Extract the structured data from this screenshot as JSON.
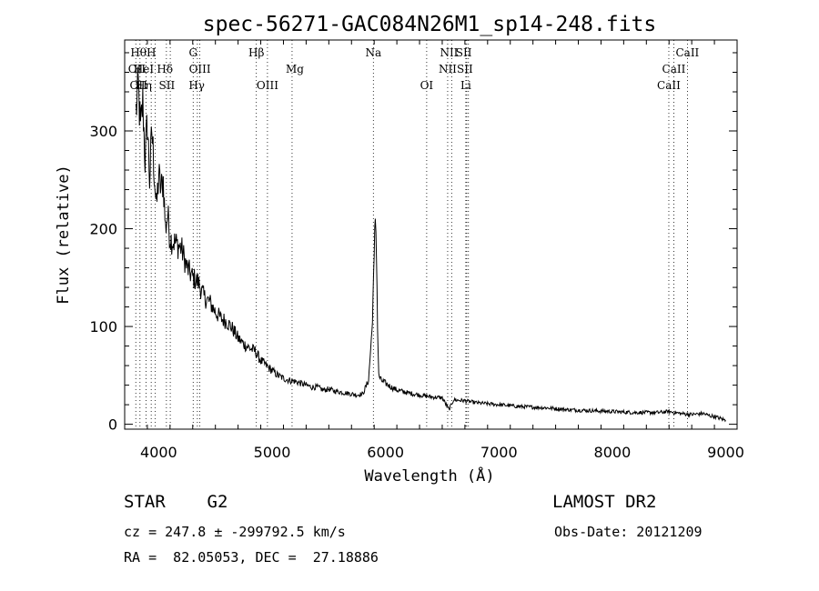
{
  "chart_data": {
    "type": "line",
    "title": "spec-56271-GAC084N26M1_sp14-248.fits",
    "xlabel": "Wavelength (Å)",
    "ylabel": "Flux (relative)",
    "xlim": [
      3700,
      9100
    ],
    "ylim": [
      -5,
      393
    ],
    "xticks": [
      4000,
      5000,
      6000,
      7000,
      8000,
      9000
    ],
    "xtick_labels": [
      "4000",
      "5000",
      "6000",
      "7000",
      "8000",
      "9000"
    ],
    "yticks": [
      0,
      100,
      200,
      300
    ],
    "ytick_labels": [
      "0",
      "100",
      "200",
      "300"
    ],
    "grid": false,
    "line_color": "#000000",
    "series": [
      {
        "x": [
          3800,
          3820,
          3840,
          3860,
          3880,
          3900,
          3920,
          3940,
          3960,
          3980,
          4000,
          4020,
          4040,
          4060,
          4080,
          4100,
          4150,
          4200,
          4250,
          4300,
          4350,
          4400,
          4450,
          4500,
          4550,
          4600,
          4650,
          4700,
          4750,
          4800,
          4850,
          4900,
          4950,
          5000,
          5050,
          5100,
          5150,
          5200,
          5250,
          5300,
          5350,
          5400,
          5450,
          5500,
          5550,
          5600,
          5650,
          5700,
          5750,
          5800,
          5850,
          5880,
          5900,
          5910,
          5920,
          5930,
          5940,
          5960,
          6000,
          6050,
          6100,
          6200,
          6300,
          6400,
          6500,
          6560,
          6600,
          6700,
          6800,
          6900,
          7000,
          7200,
          7400,
          7600,
          7800,
          8000,
          8200,
          8400,
          8500,
          8600,
          8700,
          8800,
          8850,
          8900,
          8950,
          9000
        ],
        "y": [
          320,
          345,
          300,
          330,
          270,
          310,
          250,
          300,
          260,
          220,
          255,
          240,
          250,
          200,
          215,
          190,
          185,
          180,
          160,
          150,
          145,
          130,
          125,
          115,
          108,
          105,
          98,
          88,
          82,
          78,
          75,
          65,
          60,
          55,
          50,
          47,
          45,
          44,
          42,
          40,
          38,
          38,
          35,
          36,
          34,
          33,
          32,
          31,
          30,
          31,
          45,
          95,
          165,
          215,
          180,
          100,
          50,
          45,
          42,
          38,
          35,
          32,
          30,
          28,
          27,
          15,
          25,
          24,
          22,
          21,
          20,
          18,
          17,
          15,
          14,
          13,
          12,
          12,
          13,
          11,
          10,
          11,
          9,
          8,
          6,
          4
        ]
      }
    ],
    "lines": [
      {
        "wavelength": 3798,
        "labels": [
          "",
          "OII",
          ""
        ],
        "x_label": 3808,
        "y_label": 1
      },
      {
        "wavelength": 3835,
        "labels": [
          "Hθ",
          "",
          "OII"
        ],
        "x_label": 3822,
        "y_label": 2
      },
      {
        "wavelength": 3889,
        "labels": [
          "",
          "HeI",
          "Hη"
        ],
        "x_label": 3868,
        "y_label": 1
      },
      {
        "wavelength": 3934,
        "labels": [
          "",
          "",
          ""
        ],
        "x_label": 3934,
        "y_label": 0
      },
      {
        "wavelength": 3970,
        "labels": [
          "H",
          "",
          ""
        ],
        "x_label": 3935,
        "y_label": 0
      },
      {
        "wavelength": 4068,
        "labels": [
          "",
          "",
          "SII"
        ],
        "x_label": 4072,
        "y_label": 2
      },
      {
        "wavelength": 4102,
        "labels": [
          "",
          "Hδ",
          ""
        ],
        "x_label": 4055,
        "y_label": 1
      },
      {
        "wavelength": 4304,
        "labels": [
          "G",
          "",
          ""
        ],
        "x_label": 4304,
        "y_label": 0
      },
      {
        "wavelength": 4341,
        "labels": [
          "",
          "",
          "Hγ"
        ],
        "x_label": 4335,
        "y_label": 2
      },
      {
        "wavelength": 4363,
        "labels": [
          "",
          "OIII",
          ""
        ],
        "x_label": 4363,
        "y_label": 1
      },
      {
        "wavelength": 4861,
        "labels": [
          "Hβ",
          "",
          ""
        ],
        "x_label": 4861,
        "y_label": 0
      },
      {
        "wavelength": 4959,
        "labels": [
          "",
          "",
          "OIII"
        ],
        "x_label": 4959,
        "y_label": 2
      },
      {
        "wavelength": 5176,
        "labels": [
          "",
          "Mg",
          ""
        ],
        "x_label": 5200,
        "y_label": 1
      },
      {
        "wavelength": 5893,
        "labels": [
          "Na",
          "",
          ""
        ],
        "x_label": 5893,
        "y_label": 0
      },
      {
        "wavelength": 6363,
        "labels": [
          "",
          "",
          "OI"
        ],
        "x_label": 6363,
        "y_label": 2
      },
      {
        "wavelength": 6548,
        "labels": [
          "",
          "NII",
          ""
        ],
        "x_label": 6548,
        "y_label": 1
      },
      {
        "wavelength": 6583,
        "labels": [
          "NII",
          "",
          ""
        ],
        "x_label": 6560,
        "y_label": 0
      },
      {
        "wavelength": 6708,
        "labels": [
          "",
          "",
          "Li"
        ],
        "x_label": 6708,
        "y_label": 2
      },
      {
        "wavelength": 6716,
        "labels": [
          "SII",
          "",
          ""
        ],
        "x_label": 6690,
        "y_label": 0
      },
      {
        "wavelength": 6731,
        "labels": [
          "",
          "SII",
          ""
        ],
        "x_label": 6700,
        "y_label": 1
      },
      {
        "wavelength": 8498,
        "labels": [
          "",
          "",
          "CaII"
        ],
        "x_label": 8498,
        "y_label": 2
      },
      {
        "wavelength": 8542,
        "labels": [
          "",
          "CaII",
          ""
        ],
        "x_label": 8542,
        "y_label": 1
      },
      {
        "wavelength": 8662,
        "labels": [
          "CaII",
          "",
          ""
        ],
        "x_label": 8662,
        "y_label": 0
      }
    ]
  },
  "info": {
    "object_class": "STAR    G2",
    "survey": "LAMOST DR2",
    "cz": "cz = 247.8 ± -299792.5 km/s",
    "obs_date": "Obs-Date: 20121209",
    "radec": "RA =  82.05053, DEC =  27.18886"
  }
}
